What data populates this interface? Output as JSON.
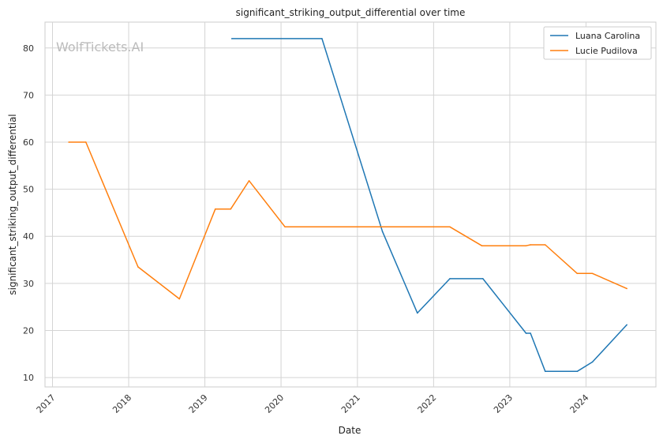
{
  "chart_data": {
    "type": "line",
    "title": "significant_striking_output_differential over time",
    "xlabel": "Date",
    "ylabel": "significant_striking_output_differential",
    "watermark": "WolfTickets.AI",
    "grid": true,
    "legend_position": "top-right",
    "xlim": [
      "2016-11-26",
      "2024-12-01"
    ],
    "ylim": [
      8,
      85.5
    ],
    "x_ticks": [
      "2017",
      "2018",
      "2019",
      "2020",
      "2021",
      "2022",
      "2023",
      "2024"
    ],
    "y_ticks": [
      10,
      20,
      30,
      40,
      50,
      60,
      70,
      80
    ],
    "series": [
      {
        "name": "Luana Carolina",
        "color": "#1f77b4",
        "points": [
          {
            "x": "2019-05-10",
            "y": 82
          },
          {
            "x": "2020-07-15",
            "y": 82
          },
          {
            "x": "2021-05-01",
            "y": 41
          },
          {
            "x": "2021-10-15",
            "y": 23.7
          },
          {
            "x": "2022-03-20",
            "y": 31
          },
          {
            "x": "2022-08-25",
            "y": 31
          },
          {
            "x": "2023-03-20",
            "y": 19.4
          },
          {
            "x": "2023-04-10",
            "y": 19.4
          },
          {
            "x": "2023-06-20",
            "y": 11.3
          },
          {
            "x": "2023-11-20",
            "y": 11.3
          },
          {
            "x": "2024-02-01",
            "y": 13.3
          },
          {
            "x": "2024-07-15",
            "y": 21.2
          }
        ]
      },
      {
        "name": "Lucie Pudilova",
        "color": "#ff7f0e",
        "points": [
          {
            "x": "2017-03-20",
            "y": 60
          },
          {
            "x": "2017-06-10",
            "y": 60
          },
          {
            "x": "2018-02-15",
            "y": 33.5
          },
          {
            "x": "2018-09-01",
            "y": 26.7
          },
          {
            "x": "2019-02-20",
            "y": 45.8
          },
          {
            "x": "2019-05-05",
            "y": 45.8
          },
          {
            "x": "2019-08-01",
            "y": 51.8
          },
          {
            "x": "2020-01-20",
            "y": 42
          },
          {
            "x": "2022-03-20",
            "y": 42
          },
          {
            "x": "2022-08-20",
            "y": 38
          },
          {
            "x": "2023-03-20",
            "y": 38
          },
          {
            "x": "2023-04-10",
            "y": 38.2
          },
          {
            "x": "2023-06-20",
            "y": 38.2
          },
          {
            "x": "2023-11-20",
            "y": 32.1
          },
          {
            "x": "2024-02-01",
            "y": 32.1
          },
          {
            "x": "2024-07-15",
            "y": 28.9
          }
        ]
      }
    ]
  }
}
